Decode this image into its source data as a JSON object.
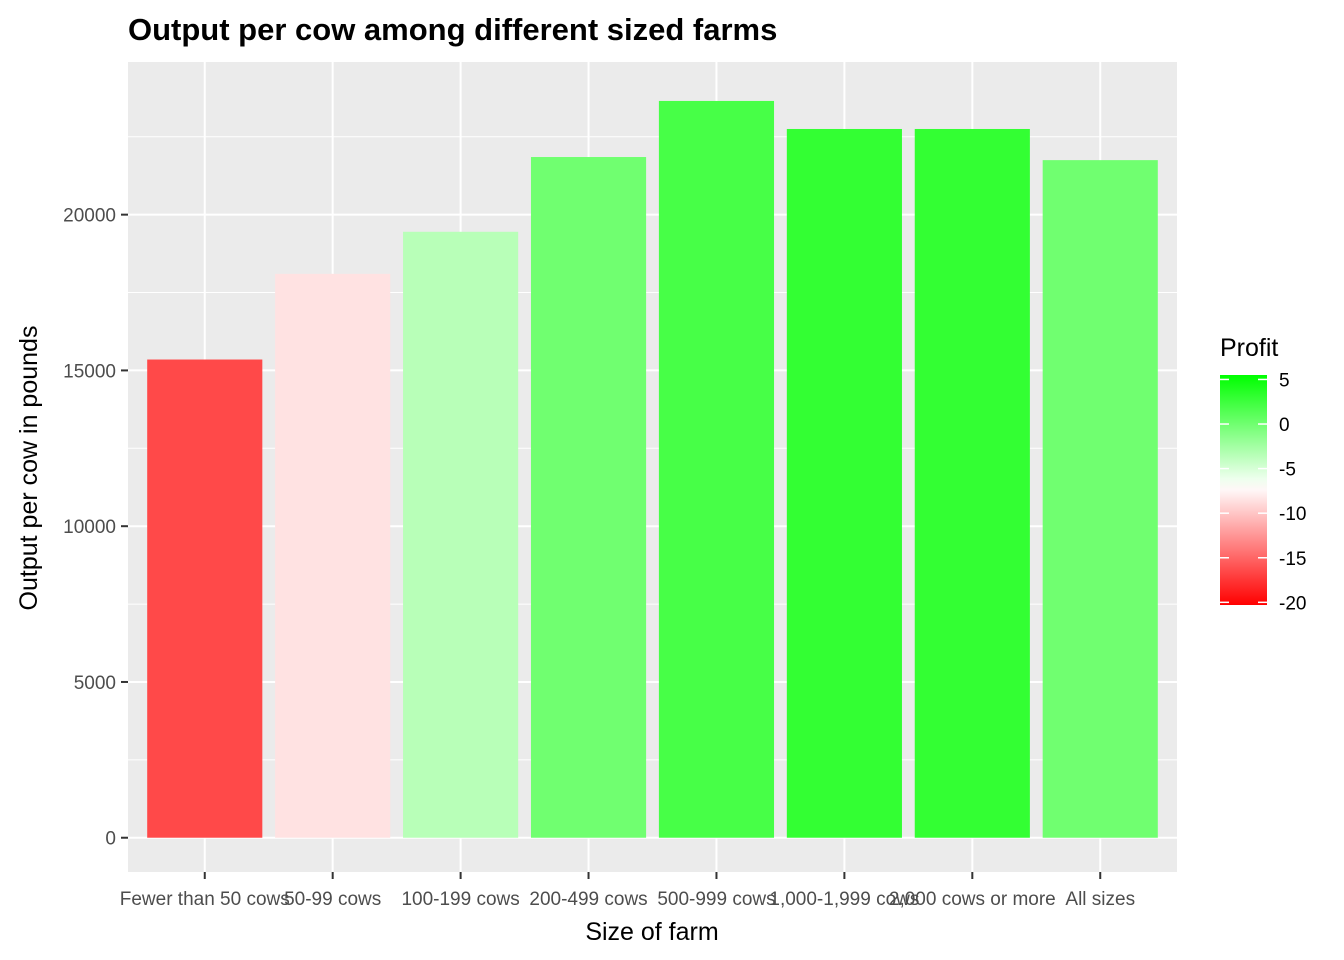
{
  "chart_data": {
    "type": "bar",
    "title": "Output per cow among different sized farms",
    "xlabel": "Size of farm",
    "ylabel": "Output per cow in pounds",
    "categories": [
      "Fewer than 50 cows",
      "50-99 cows",
      "100-199 cows",
      "200-499 cows",
      "500-999 cows",
      "1,000-1,999 cows",
      "2,000 cows or more",
      "All sizes"
    ],
    "values": [
      15350,
      18100,
      19450,
      21850,
      23650,
      22750,
      22750,
      21750
    ],
    "profit": [
      -16.5,
      -8.5,
      -3.5,
      0,
      2,
      3,
      3,
      0
    ],
    "y_ticks": [
      0,
      5000,
      10000,
      15000,
      20000
    ],
    "ylim": [
      -1100,
      24900
    ],
    "grid": true,
    "legend": {
      "title": "Profit",
      "placement": "right",
      "ticks": [
        5,
        0,
        -5,
        -10,
        -15,
        -20
      ],
      "range": [
        -20.3,
        5.5
      ],
      "low_color": "#ff0000",
      "mid_color": "#ffffff",
      "high_color": "#00ff00",
      "midpoint": -7
    },
    "colors": {
      "panel": "#ebebeb",
      "grid": "#ffffff"
    }
  }
}
